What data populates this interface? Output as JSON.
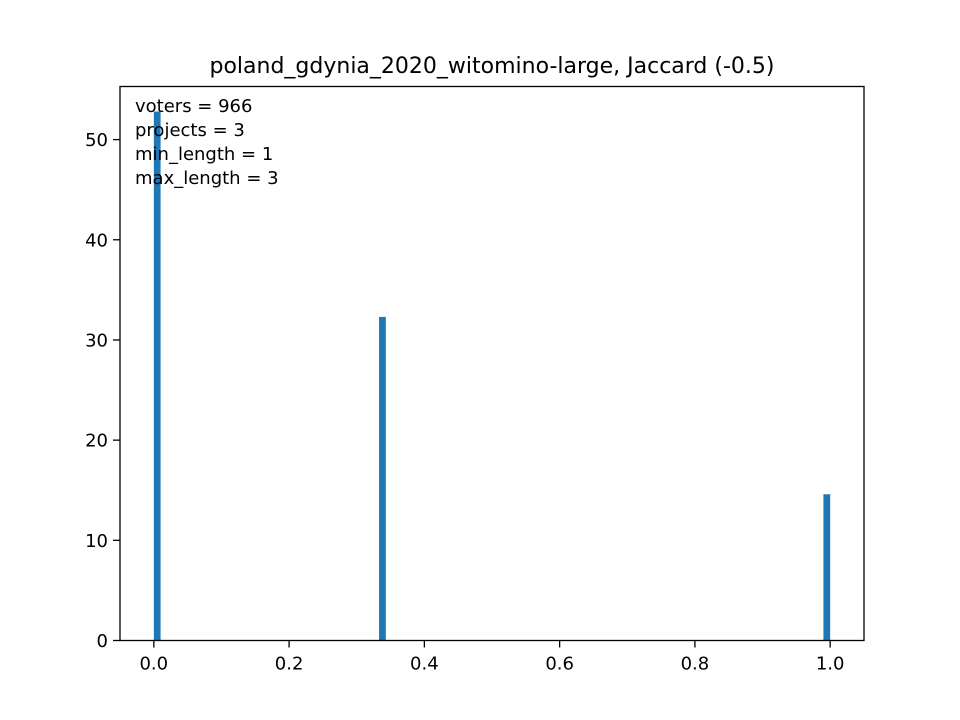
{
  "chart_data": {
    "type": "bar",
    "title": "poland_gdynia_2020_witomino-large, Jaccard (-0.5)",
    "xlabel": "",
    "ylabel": "",
    "xlim": [
      -0.05,
      1.05
    ],
    "ylim": [
      0,
      55.3
    ],
    "x_ticks": [
      0.0,
      0.2,
      0.4,
      0.6,
      0.8,
      1.0
    ],
    "x_tick_labels": [
      "0.0",
      "0.2",
      "0.4",
      "0.6",
      "0.8",
      "1.0"
    ],
    "y_ticks": [
      0,
      10,
      20,
      30,
      40,
      50
    ],
    "y_tick_labels": [
      "0",
      "10",
      "20",
      "30",
      "40",
      "50"
    ],
    "bar_width": 0.01,
    "bars": [
      {
        "x": 0.005,
        "value": 52.8
      },
      {
        "x": 0.338,
        "value": 32.3
      },
      {
        "x": 0.995,
        "value": 14.6
      }
    ],
    "bar_color": "#1f77b4",
    "grid": false,
    "legend": "none",
    "annotations": [
      "voters = 966",
      "projects = 3",
      "min_length = 1",
      "max_length = 3"
    ]
  }
}
